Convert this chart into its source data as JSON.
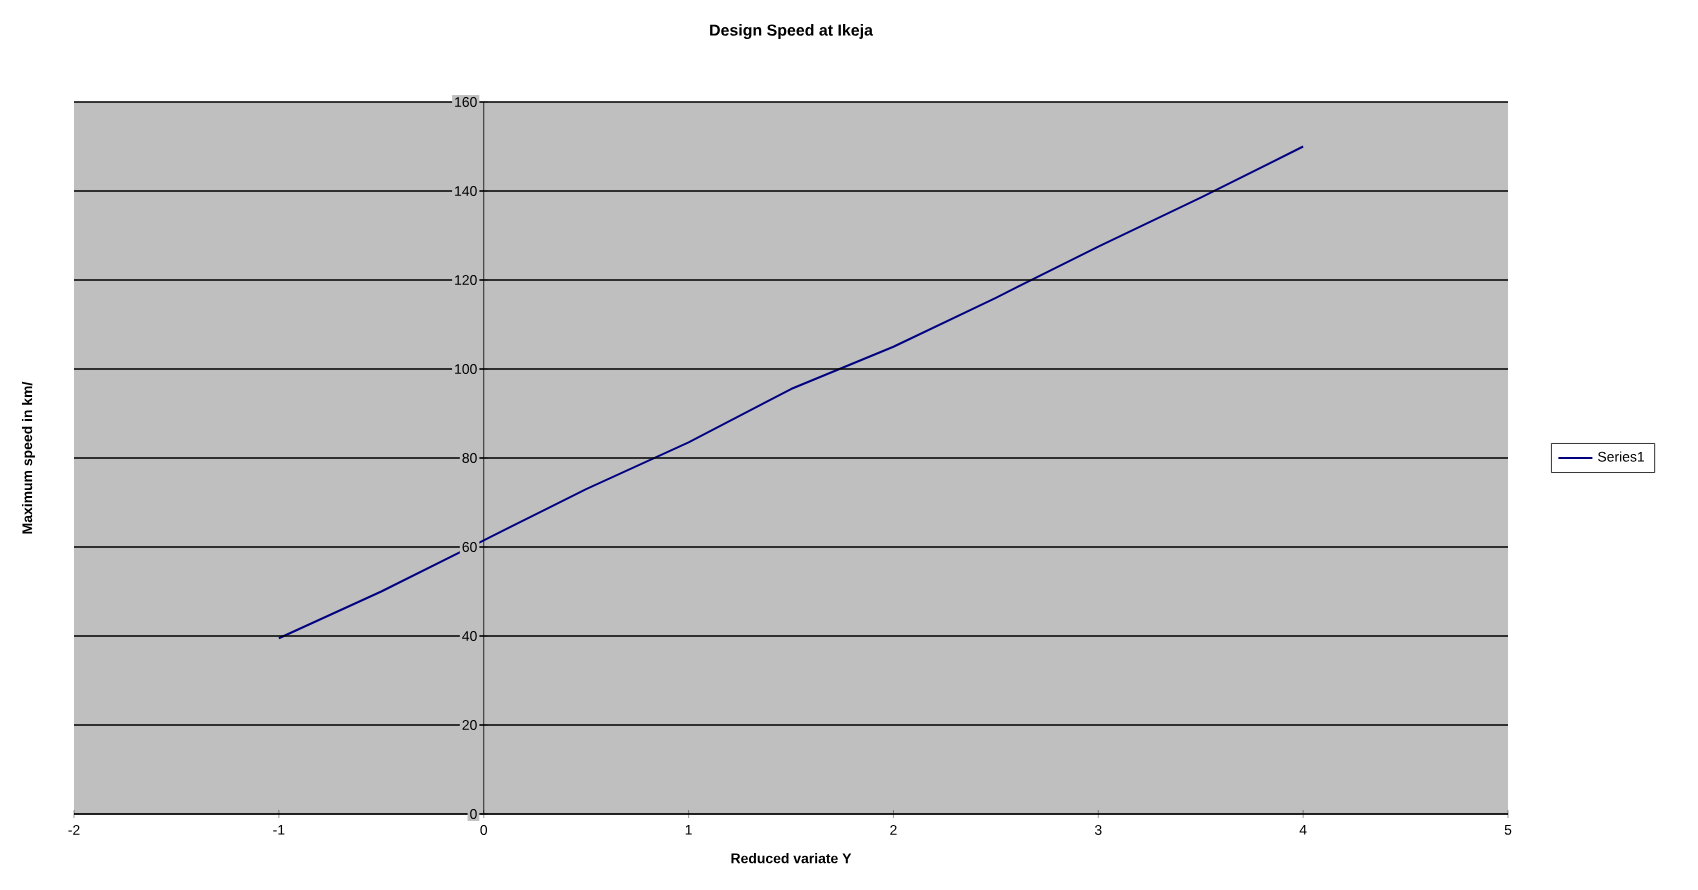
{
  "chart_data": {
    "type": "line",
    "title": "Design Speed at Ikeja",
    "xlabel": "Reduced variate Y",
    "ylabel": "Maximum speed in km/",
    "x": [
      -1,
      -0.5,
      0,
      0.5,
      1,
      1.5,
      2,
      2.5,
      3,
      3.5,
      4
    ],
    "series": [
      {
        "name": "Series1",
        "color": "#000080",
        "values": [
          39.5,
          50,
          61.5,
          73,
          83.5,
          95.5,
          105,
          116,
          127.5,
          138.5,
          150
        ]
      }
    ],
    "xlim": [
      -2,
      5
    ],
    "xticks": [
      -2,
      -1,
      0,
      1,
      2,
      3,
      4,
      5
    ],
    "ylim": [
      0,
      160
    ],
    "yticks": [
      0,
      20,
      40,
      60,
      80,
      100,
      120,
      140,
      160
    ],
    "grid": "y",
    "legend": "right",
    "marker": "none",
    "line_style": "solid"
  }
}
